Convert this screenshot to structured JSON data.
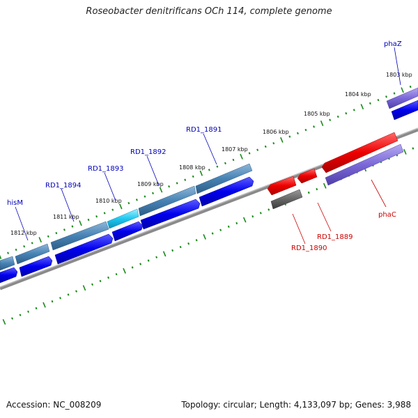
{
  "title": "Roseobacter denitrificans OCh 114, complete genome",
  "footer": {
    "accession": "Accession: NC_008209",
    "summary": "Topology: circular; Length: 4,133,097 bp; Genes: 3,988"
  },
  "colors": {
    "forward_cds": "#0000ee",
    "forward_gene": "#4682b4",
    "highlight_gene": "#1ec8f0",
    "reverse_cds": "#ee0000",
    "reverse_gene_purple": "#7b68d8",
    "pseudo_gene": "#666666",
    "backbone": "#888888",
    "tick": "#1a8a1a",
    "label_forward": "#0000bb",
    "label_reverse": "#cc0000"
  },
  "ticks": {
    "labels": [
      "1803 kbp",
      "1804 kbp",
      "1805 kbp",
      "1806 kbp",
      "1807 kbp",
      "1808 kbp",
      "1809 kbp",
      "1810 kbp",
      "1811 kbp",
      "1812 kbp"
    ]
  },
  "gene_labels": {
    "forward": [
      "phaZ",
      "RD1_1891",
      "RD1_1892",
      "RD1_1893",
      "RD1_1894",
      "hisM"
    ],
    "reverse": [
      "phaC",
      "RD1_1889",
      "RD1_1890"
    ]
  }
}
